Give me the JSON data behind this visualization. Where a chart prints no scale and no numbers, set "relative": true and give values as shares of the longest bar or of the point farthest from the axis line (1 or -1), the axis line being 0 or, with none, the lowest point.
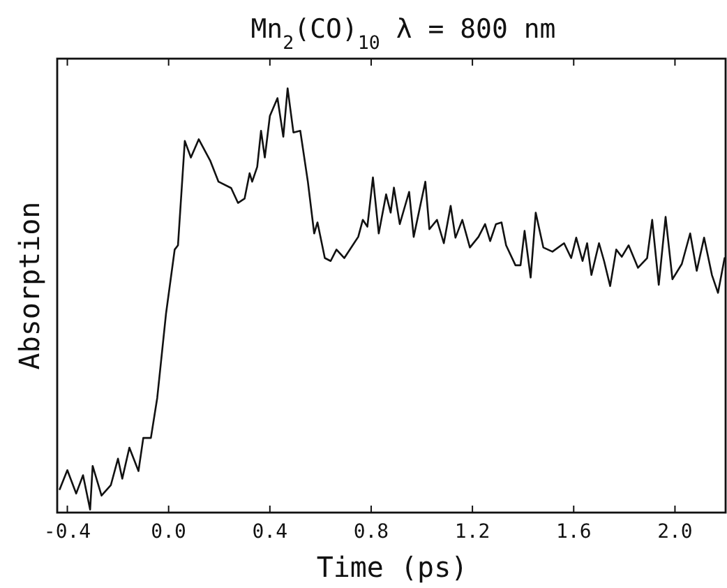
{
  "chart_data": {
    "type": "line",
    "title": "Mn$_{2}$(CO)$_{10}$  λ = 800 nm",
    "xlabel": "Time (ps)",
    "ylabel": "Absorption",
    "relative": true,
    "xlim": [
      -0.44,
      2.2
    ],
    "xticks": [
      -0.4,
      {
        "value": 0,
        "label": "0.0"
      },
      0.4,
      0.8,
      1.2,
      1.6,
      {
        "value": 2,
        "label": "2.0"
      }
    ],
    "grid": false,
    "marker": "none",
    "line_style": "solid",
    "series": [
      {
        "color": "#111111",
        "x": [
          -0.43,
          -0.4,
          -0.365,
          -0.338,
          -0.31,
          -0.3,
          -0.265,
          -0.228,
          -0.2,
          -0.183,
          -0.155,
          -0.119,
          -0.1,
          -0.07,
          -0.045,
          -0.01,
          0.024,
          0.037,
          0.064,
          0.088,
          0.119,
          0.164,
          0.197,
          0.247,
          0.274,
          0.3,
          0.32,
          0.33,
          0.35,
          0.365,
          0.38,
          0.4,
          0.43,
          0.453,
          0.47,
          0.493,
          0.52,
          0.55,
          0.575,
          0.588,
          0.617,
          0.64,
          0.663,
          0.694,
          0.749,
          0.767,
          0.785,
          0.807,
          0.83,
          0.859,
          0.877,
          0.89,
          0.913,
          0.95,
          0.968,
          1.014,
          1.03,
          1.06,
          1.087,
          1.114,
          1.133,
          1.16,
          1.19,
          1.224,
          1.25,
          1.27,
          1.293,
          1.315,
          1.333,
          1.37,
          1.39,
          1.406,
          1.43,
          1.45,
          1.48,
          1.516,
          1.562,
          1.59,
          1.61,
          1.635,
          1.653,
          1.67,
          1.7,
          1.72,
          1.744,
          1.768,
          1.79,
          1.817,
          1.854,
          1.89,
          1.91,
          1.936,
          1.963,
          1.99,
          2.027,
          2.06,
          2.086,
          2.115,
          2.146,
          2.17,
          2.196
        ],
        "values": [
          0.055,
          0.1,
          0.045,
          0.088,
          0.007,
          0.11,
          0.04,
          0.065,
          0.127,
          0.08,
          0.153,
          0.098,
          0.176,
          0.176,
          0.27,
          0.47,
          0.62,
          0.63,
          0.876,
          0.837,
          0.88,
          0.83,
          0.78,
          0.765,
          0.73,
          0.74,
          0.8,
          0.78,
          0.815,
          0.9,
          0.837,
          0.935,
          0.977,
          0.886,
          1,
          0.896,
          0.9,
          0.78,
          0.658,
          0.684,
          0.6,
          0.593,
          0.62,
          0.6,
          0.65,
          0.69,
          0.674,
          0.79,
          0.658,
          0.75,
          0.707,
          0.766,
          0.68,
          0.756,
          0.65,
          0.78,
          0.668,
          0.69,
          0.635,
          0.723,
          0.648,
          0.69,
          0.625,
          0.65,
          0.68,
          0.64,
          0.68,
          0.684,
          0.63,
          0.583,
          0.583,
          0.664,
          0.554,
          0.707,
          0.625,
          0.615,
          0.635,
          0.6,
          0.648,
          0.593,
          0.635,
          0.56,
          0.635,
          0.593,
          0.534,
          0.62,
          0.603,
          0.63,
          0.577,
          0.6,
          0.69,
          0.537,
          0.697,
          0.55,
          0.586,
          0.658,
          0.57,
          0.648,
          0.56,
          0.518,
          0.6
        ]
      }
    ]
  }
}
